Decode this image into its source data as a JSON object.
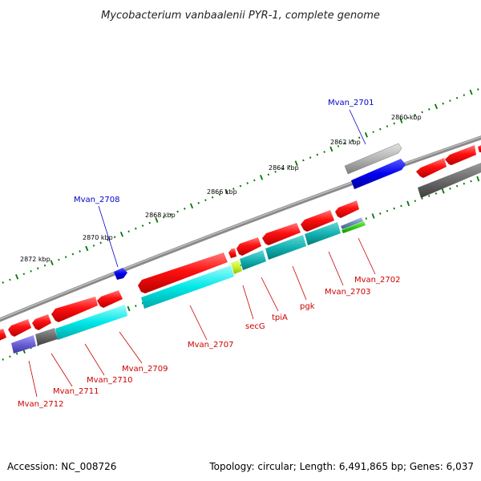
{
  "title": "Mycobacterium vanbaalenii PYR-1, complete genome",
  "footer": {
    "accession": "Accession: NC_008726",
    "summary": "Topology: circular; Length: 6,491,865 bp; Genes: 6,037"
  },
  "colors": {
    "red_gene": "#ff0000",
    "cyan_gene": "#00e5e5",
    "blue_gene": "#0000ee",
    "grey_gene": "#9a9a9a",
    "label_red": "#cc0000",
    "label_blue": "#0000cc",
    "tick_green": "#007700"
  },
  "scale_labels": [
    "2860 kbp",
    "2862 kbp",
    "2864 kbp",
    "2866 kbp",
    "2868 kbp",
    "2870 kbp",
    "2872 kbp"
  ],
  "gene_labels": {
    "mvan_2701": "Mvan_2701",
    "mvan_2708": "Mvan_2708",
    "mvan_2702": "Mvan_2702",
    "mvan_2703": "Mvan_2703",
    "pgk": "pgk",
    "tpia": "tpiA",
    "secg": "secG",
    "mvan_2707": "Mvan_2707",
    "mvan_2709": "Mvan_2709",
    "mvan_2710": "Mvan_2710",
    "mvan_2711": "Mvan_2711",
    "mvan_2712": "Mvan_2712"
  }
}
